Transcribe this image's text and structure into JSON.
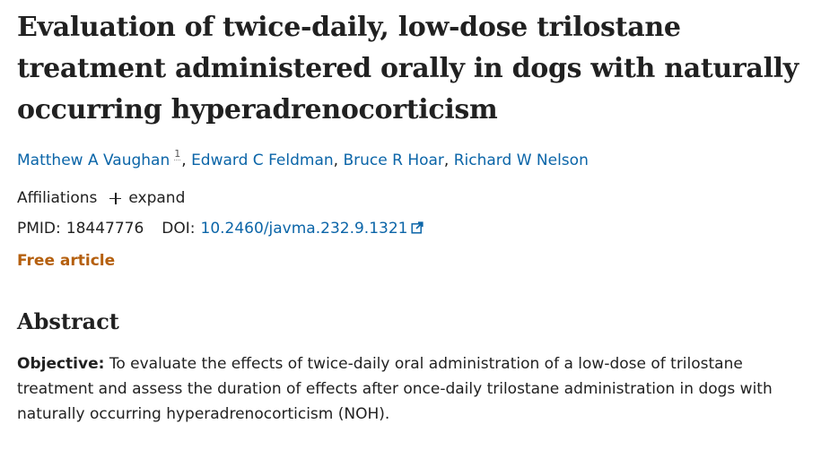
{
  "article": {
    "title": "Evaluation of twice-daily, low-dose trilostane treatment administered orally in dogs with naturally occurring hyperadrenocorticism",
    "authors": [
      {
        "name": "Matthew A Vaughan",
        "aff": "1"
      },
      {
        "name": "Edward C Feldman"
      },
      {
        "name": "Bruce R Hoar"
      },
      {
        "name": "Richard W Nelson"
      }
    ],
    "separator": ", ",
    "affiliations_label": "Affiliations",
    "expand_label": "expand",
    "pmid_label": "PMID:",
    "pmid": "18447776",
    "doi_label": "DOI:",
    "doi": "10.2460/javma.232.9.1321",
    "free_label": "Free article"
  },
  "abstract": {
    "heading": "Abstract",
    "objective_label": "Objective:",
    "objective_text": " To evaluate the effects of twice-daily oral administration of a low-dose of trilostane treatment and assess the duration of effects after once-daily trilostane administration in dogs with naturally occurring hyperadrenocorticism (NOH)."
  },
  "colors": {
    "link": "#0b65a8",
    "free": "#b5600f",
    "text": "#212121"
  },
  "icons": {
    "expand": "plus-icon",
    "doi_external": "external-link-icon"
  }
}
